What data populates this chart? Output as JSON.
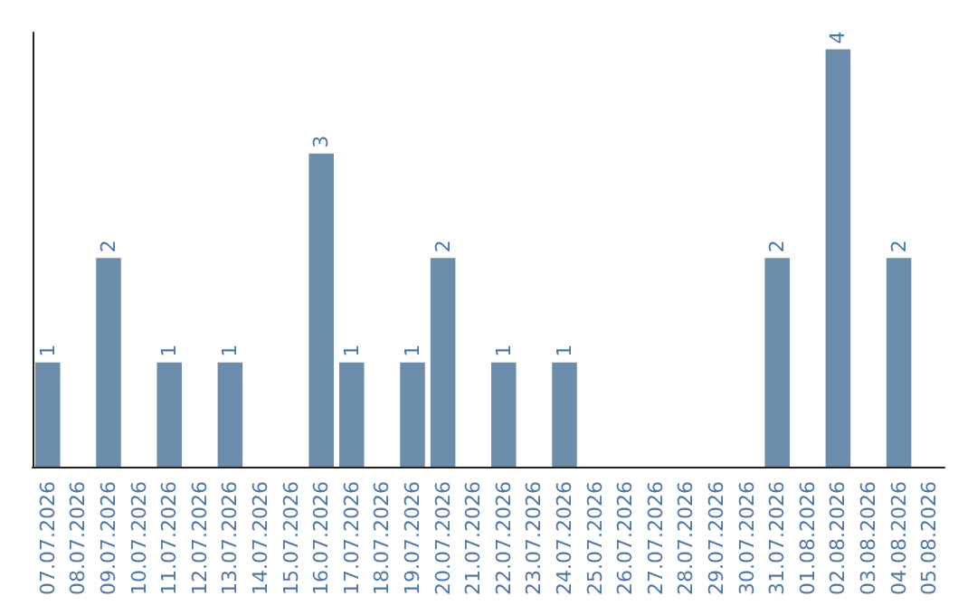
{
  "chart_data": {
    "type": "bar",
    "categories": [
      "07.07.2026",
      "08.07.2026",
      "09.07.2026",
      "10.07.2026",
      "11.07.2026",
      "12.07.2026",
      "13.07.2026",
      "14.07.2026",
      "15.07.2026",
      "16.07.2026",
      "17.07.2026",
      "18.07.2026",
      "19.07.2026",
      "20.07.2026",
      "21.07.2026",
      "22.07.2026",
      "23.07.2026",
      "24.07.2026",
      "25.07.2026",
      "26.07.2026",
      "27.07.2026",
      "28.07.2026",
      "29.07.2026",
      "30.07.2026",
      "31.07.2026",
      "01.08.2026",
      "02.08.2026",
      "03.08.2026",
      "04.08.2026",
      "05.08.2026"
    ],
    "values": [
      1,
      0,
      2,
      0,
      1,
      0,
      1,
      0,
      0,
      3,
      1,
      0,
      1,
      2,
      0,
      1,
      0,
      1,
      0,
      0,
      0,
      0,
      0,
      0,
      2,
      0,
      4,
      0,
      2,
      0
    ],
    "value_labels": [
      "1",
      null,
      "2",
      null,
      "1",
      null,
      "1",
      null,
      null,
      "3",
      "1",
      null,
      "1",
      "2",
      null,
      "1",
      null,
      "1",
      null,
      null,
      null,
      null,
      null,
      null,
      "2",
      null,
      "4",
      null,
      "2",
      null
    ],
    "color": "#6b8cab",
    "tick_labels": "x"
  }
}
